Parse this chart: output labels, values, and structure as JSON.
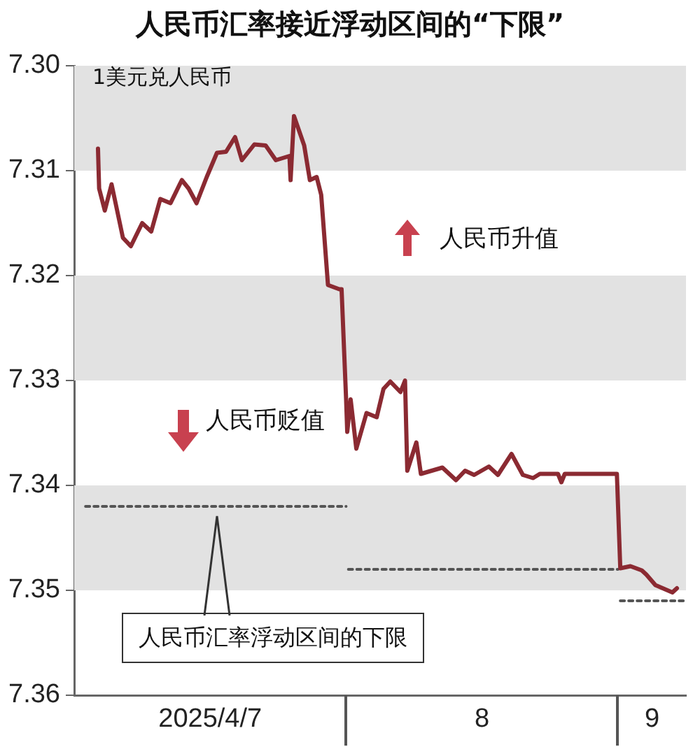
{
  "chart_data": {
    "type": "line",
    "title": "人民币汇率接近浮动区间的“下限”",
    "ylabel": "1美元兑人民币",
    "xlim": [
      "2025-04-07T00:00",
      "2025-04-09T06:00"
    ],
    "xticks": [
      {
        "value": "2025-04-07T12:00",
        "label": "2025/4/7"
      },
      {
        "value": "2025-04-08T12:00",
        "label": "8"
      },
      {
        "value": "2025-04-09T03:00",
        "label": "9"
      }
    ],
    "ylim": [
      7.36,
      7.3
    ],
    "yticks": [
      {
        "value": 7.3,
        "label": "7.30"
      },
      {
        "value": 7.31,
        "label": "7.31"
      },
      {
        "value": 7.32,
        "label": "7.32"
      },
      {
        "value": 7.33,
        "label": "7.33"
      },
      {
        "value": 7.34,
        "label": "7.34"
      },
      {
        "value": 7.35,
        "label": "7.35"
      },
      {
        "value": 7.36,
        "label": "7.36"
      }
    ],
    "grid": false,
    "legend": false,
    "marker": "none",
    "bands": [
      {
        "axis": "y",
        "from": 7.3,
        "to": 7.31,
        "color": "#e2e2e2"
      },
      {
        "axis": "y",
        "from": 7.32,
        "to": 7.33,
        "color": "#e2e2e2"
      },
      {
        "axis": "y",
        "from": 7.34,
        "to": 7.35,
        "color": "#e2e2e2"
      }
    ],
    "series": [
      {
        "type": "line",
        "color": "#8b2a32",
        "line_style": "solid",
        "x": [
          "2025-04-07T02:06",
          "2025-04-07T02:12",
          "2025-04-07T02:42",
          "2025-04-07T03:18",
          "2025-04-07T04:18",
          "2025-04-07T05:00",
          "2025-04-07T06:00",
          "2025-04-07T06:48",
          "2025-04-07T07:36",
          "2025-04-07T08:30",
          "2025-04-07T09:30",
          "2025-04-07T10:06",
          "2025-04-07T10:48",
          "2025-04-07T11:42",
          "2025-04-07T12:36",
          "2025-04-07T13:24",
          "2025-04-07T14:12",
          "2025-04-07T14:48",
          "2025-04-07T15:54",
          "2025-04-07T16:54",
          "2025-04-07T17:48",
          "2025-04-07T19:00",
          "2025-04-07T19:06",
          "2025-04-07T19:24",
          "2025-04-07T20:18",
          "2025-04-07T20:48",
          "2025-04-07T21:24",
          "2025-04-07T21:48",
          "2025-04-07T22:24",
          "2025-04-07T23:24",
          "2025-04-07T23:36",
          "2025-04-08T00:00",
          "2025-04-08T00:06",
          "2025-04-08T00:24",
          "2025-04-08T00:54",
          "2025-04-08T01:48",
          "2025-04-08T02:42",
          "2025-04-08T03:18",
          "2025-04-08T03:54",
          "2025-04-08T04:48",
          "2025-04-08T05:12",
          "2025-04-08T05:24",
          "2025-04-08T06:12",
          "2025-04-08T06:36",
          "2025-04-08T08:30",
          "2025-04-08T09:42",
          "2025-04-08T10:30",
          "2025-04-08T11:18",
          "2025-04-08T12:36",
          "2025-04-08T13:24",
          "2025-04-08T14:36",
          "2025-04-08T15:36",
          "2025-04-08T16:30",
          "2025-04-08T17:06",
          "2025-04-08T18:42",
          "2025-04-08T19:00",
          "2025-04-08T19:18",
          "2025-04-08T23:54",
          "2025-04-09T00:12",
          "2025-04-09T01:06",
          "2025-04-09T02:06",
          "2025-04-09T02:30",
          "2025-04-09T03:18",
          "2025-04-09T04:48",
          "2025-04-09T05:12"
        ],
        "values": [
          7.3079,
          7.3117,
          7.3138,
          7.3113,
          7.3164,
          7.3172,
          7.315,
          7.3158,
          7.3127,
          7.3131,
          7.3109,
          7.3117,
          7.3131,
          7.3106,
          7.3083,
          7.3082,
          7.3068,
          7.309,
          7.3075,
          7.3076,
          7.309,
          7.3086,
          7.3109,
          7.3048,
          7.3076,
          7.3109,
          7.3106,
          7.3123,
          7.3209,
          7.3213,
          7.3213,
          7.3318,
          7.3349,
          7.3318,
          7.3365,
          7.3331,
          7.3335,
          7.3308,
          7.3301,
          7.3311,
          7.33,
          7.3386,
          7.3359,
          7.3389,
          7.3383,
          7.3395,
          7.3386,
          7.339,
          7.3382,
          7.339,
          7.337,
          7.339,
          7.3393,
          7.3389,
          7.3389,
          7.3397,
          7.3389,
          7.3389,
          7.3479,
          7.3477,
          7.3481,
          7.3485,
          7.3495,
          7.3502,
          7.3498
        ]
      },
      {
        "type": "line",
        "color": "#555555",
        "line_style": "dotted",
        "x": [
          "2025-04-07T01:00",
          "2025-04-08T00:00"
        ],
        "values": [
          7.342,
          7.342
        ]
      },
      {
        "type": "line",
        "color": "#555555",
        "line_style": "dotted",
        "x": [
          "2025-04-08T00:12",
          "2025-04-09T00:00"
        ],
        "values": [
          7.348,
          7.348
        ]
      },
      {
        "type": "line",
        "color": "#555555",
        "line_style": "dotted",
        "x": [
          "2025-04-09T00:12",
          "2025-04-09T06:00"
        ],
        "values": [
          7.351,
          7.351
        ]
      }
    ],
    "annotations": [
      "人民币升值",
      "人民币贬值",
      "人民币汇率浮动区间的下限"
    ]
  }
}
